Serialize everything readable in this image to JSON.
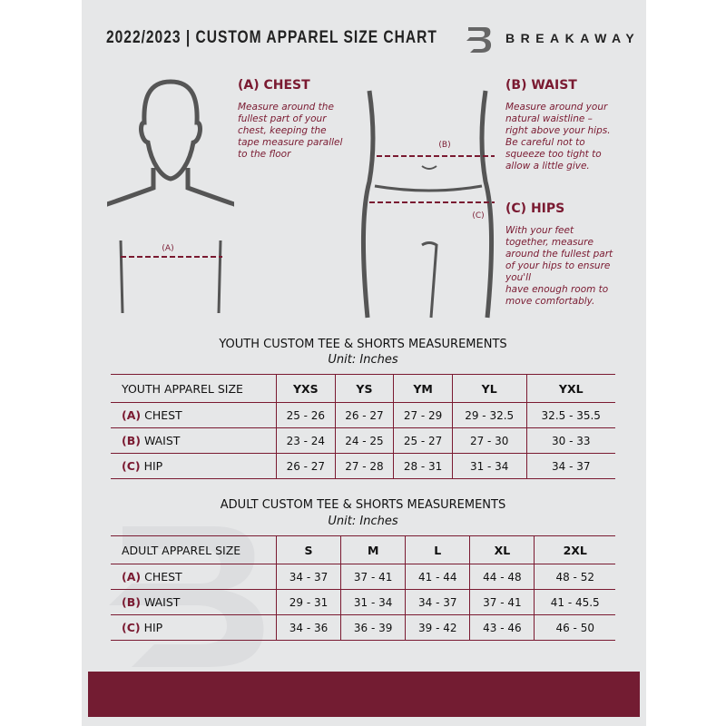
{
  "header": {
    "title": "2022/2023  |  CUSTOM APPAREL SIZE CHART",
    "brand": "BREAKAWAY"
  },
  "colors": {
    "accent": "#7a1a31",
    "background": "#e6e7e8",
    "footer": "#731c32"
  },
  "guide": {
    "chest": {
      "heading": "(A) CHEST",
      "marker": "(A)",
      "text": [
        "Measure around the",
        "fullest part of your",
        "chest, keeping the",
        "tape measure parallel",
        "to the floor"
      ]
    },
    "waist": {
      "heading": "(B) WAIST",
      "marker": "(B)",
      "text": [
        "Measure around your",
        "natural waistline –",
        "right above your hips.",
        "Be careful not to",
        "squeeze too tight to",
        "allow a little give."
      ]
    },
    "hips": {
      "heading": "(C) HIPS",
      "marker": "(C)",
      "text": [
        "With your feet",
        "together, measure",
        "around the fullest part",
        "of your hips to ensure",
        "you'll",
        "have enough room to",
        "move comfortably."
      ]
    }
  },
  "youth": {
    "title": "YOUTH CUSTOM TEE & SHORTS MEASUREMENTS",
    "unit": "Unit: Inches",
    "header": [
      "YOUTH APPAREL SIZE",
      "YXS",
      "YS",
      "YM",
      "YL",
      "YXL"
    ],
    "rows": [
      {
        "code": "(A)",
        "name": "CHEST",
        "values": [
          "25 - 26",
          "26 - 27",
          "27 - 29",
          "29 - 32.5",
          "32.5 - 35.5"
        ]
      },
      {
        "code": "(B)",
        "name": "WAIST",
        "values": [
          "23 - 24",
          "24 - 25",
          "25 - 27",
          "27 - 30",
          "30 - 33"
        ]
      },
      {
        "code": "(C)",
        "name": "HIP",
        "values": [
          "26 - 27",
          "27 - 28",
          "28 - 31",
          "31 - 34",
          "34 - 37"
        ]
      }
    ]
  },
  "adult": {
    "title": "ADULT CUSTOM TEE & SHORTS MEASUREMENTS",
    "unit": "Unit: Inches",
    "header": [
      "ADULT APPAREL SIZE",
      "S",
      "M",
      "L",
      "XL",
      "2XL"
    ],
    "rows": [
      {
        "code": "(A)",
        "name": "CHEST",
        "values": [
          "34 - 37",
          "37 - 41",
          "41 - 44",
          "44 - 48",
          "48 - 52"
        ]
      },
      {
        "code": "(B)",
        "name": "WAIST",
        "values": [
          "29 - 31",
          "31 - 34",
          "34 - 37",
          "37 - 41",
          "41 - 45.5"
        ]
      },
      {
        "code": "(C)",
        "name": "HIP",
        "values": [
          "34 - 36",
          "36 - 39",
          "39 - 42",
          "43 - 46",
          "46 - 50"
        ]
      }
    ]
  }
}
